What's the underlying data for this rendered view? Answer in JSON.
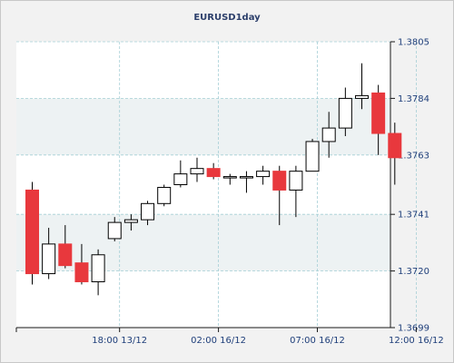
{
  "chart_data": {
    "type": "candlestick",
    "title": "EURUSD1day",
    "xlabel": "",
    "ylabel": "",
    "ylim": [
      1.3699,
      1.3805
    ],
    "y_ticks": [
      {
        "value": 1.3805,
        "label": "1.3805"
      },
      {
        "value": 1.3784,
        "label": "1.3784"
      },
      {
        "value": 1.3763,
        "label": "1.3763"
      },
      {
        "value": 1.3741,
        "label": "1.3741"
      },
      {
        "value": 1.372,
        "label": "1.3720"
      },
      {
        "value": 1.3699,
        "label": "1.3699"
      }
    ],
    "x_ticks": [
      {
        "index": 5.3,
        "label": "18:00 13/12"
      },
      {
        "index": 11.3,
        "label": "02:00 16/12"
      },
      {
        "index": 17.3,
        "label": "07:00 16/12"
      },
      {
        "index": 23.3,
        "label": "12:00 16/12"
      }
    ],
    "colors": {
      "up_fill": "#ffffff",
      "down_fill": "#e8383d",
      "outline": "#000000",
      "grid": "#a6cfd6",
      "band": "#edf2f3"
    },
    "candles": [
      {
        "open": 1.375,
        "high": 1.3753,
        "low": 1.3715,
        "close": 1.3719
      },
      {
        "open": 1.3719,
        "high": 1.3736,
        "low": 1.3717,
        "close": 1.373
      },
      {
        "open": 1.373,
        "high": 1.3737,
        "low": 1.3721,
        "close": 1.3722
      },
      {
        "open": 1.3723,
        "high": 1.373,
        "low": 1.3715,
        "close": 1.3716
      },
      {
        "open": 1.3716,
        "high": 1.3728,
        "low": 1.3711,
        "close": 1.3726
      },
      {
        "open": 1.3732,
        "high": 1.374,
        "low": 1.3731,
        "close": 1.3738
      },
      {
        "open": 1.3738,
        "high": 1.3741,
        "low": 1.3735,
        "close": 1.3739
      },
      {
        "open": 1.3739,
        "high": 1.3746,
        "low": 1.3737,
        "close": 1.3745
      },
      {
        "open": 1.3745,
        "high": 1.3752,
        "low": 1.3744,
        "close": 1.3751
      },
      {
        "open": 1.3752,
        "high": 1.3761,
        "low": 1.3751,
        "close": 1.3756
      },
      {
        "open": 1.3756,
        "high": 1.3762,
        "low": 1.3753,
        "close": 1.3758
      },
      {
        "open": 1.3758,
        "high": 1.376,
        "low": 1.3754,
        "close": 1.3755
      },
      {
        "open": 1.3755,
        "high": 1.3756,
        "low": 1.3752,
        "close": 1.3755
      },
      {
        "open": 1.3755,
        "high": 1.3757,
        "low": 1.3749,
        "close": 1.3755
      },
      {
        "open": 1.3755,
        "high": 1.3759,
        "low": 1.3752,
        "close": 1.3757
      },
      {
        "open": 1.3757,
        "high": 1.3759,
        "low": 1.3737,
        "close": 1.375
      },
      {
        "open": 1.375,
        "high": 1.3759,
        "low": 1.374,
        "close": 1.3757
      },
      {
        "open": 1.3757,
        "high": 1.3769,
        "low": 1.3757,
        "close": 1.3768
      },
      {
        "open": 1.3768,
        "high": 1.3779,
        "low": 1.3762,
        "close": 1.3773
      },
      {
        "open": 1.3773,
        "high": 1.3788,
        "low": 1.377,
        "close": 1.3784
      },
      {
        "open": 1.3784,
        "high": 1.3797,
        "low": 1.378,
        "close": 1.3785
      },
      {
        "open": 1.3786,
        "high": 1.3789,
        "low": 1.3763,
        "close": 1.3771
      },
      {
        "open": 1.3771,
        "high": 1.3775,
        "low": 1.3752,
        "close": 1.3762
      }
    ]
  }
}
